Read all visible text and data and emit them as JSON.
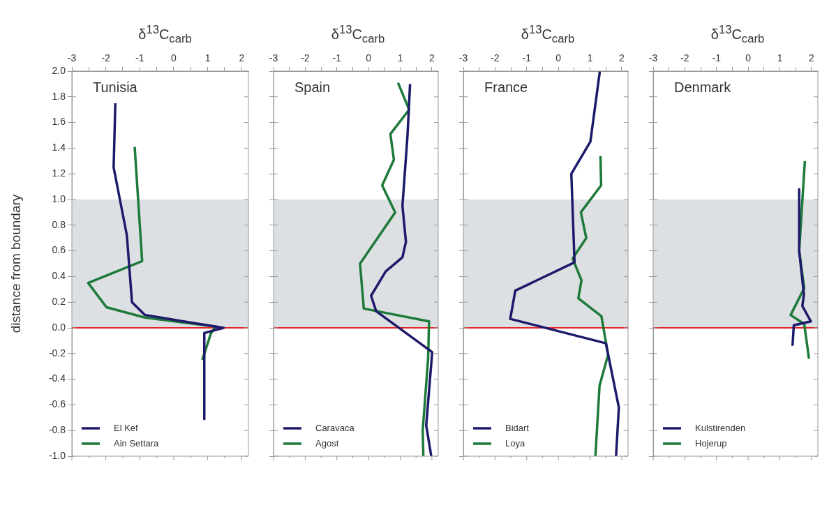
{
  "chart_data": [
    {
      "type": "line",
      "xlabel": "δ$^{13}$C$_{carb}$",
      "ylabel": "distance from boundary",
      "annotations": [
        "Tunisia"
      ],
      "xlim": [
        -3,
        2.2
      ],
      "ylim": [
        -1,
        2
      ],
      "xticks": [
        -3,
        {
          "value": -2.5,
          "label": null
        },
        -2,
        {
          "value": -1.5,
          "label": null
        },
        -1,
        {
          "value": -0.5,
          "label": null
        },
        0,
        {
          "value": 0.5,
          "label": null
        },
        1,
        {
          "value": 1.5,
          "label": null
        },
        2
      ],
      "yticks": [
        {
          "value": -1,
          "label": "-1.0"
        },
        {
          "value": -0.8,
          "label": "-0.8"
        },
        {
          "value": -0.6,
          "label": "-0.6"
        },
        {
          "value": -0.4,
          "label": "-0.4"
        },
        {
          "value": -0.2,
          "label": "-0.2"
        },
        {
          "value": 0,
          "label": "0.0"
        },
        {
          "value": 0.2,
          "label": "0.2"
        },
        {
          "value": 0.4,
          "label": "0.4"
        },
        {
          "value": 0.6,
          "label": "0.6"
        },
        {
          "value": 0.8,
          "label": "0.8"
        },
        {
          "value": 1,
          "label": "1.0"
        },
        {
          "value": 1.2,
          "label": "1.2"
        },
        {
          "value": 1.4,
          "label": "1.4"
        },
        {
          "value": 1.6,
          "label": "1.6"
        },
        {
          "value": 1.8,
          "label": "1.8"
        },
        {
          "value": 2,
          "label": "2.0"
        }
      ],
      "bands": [
        {
          "axis": "y",
          "from": 0,
          "to": 1,
          "color": "#dde0e3"
        }
      ],
      "ref_lines": [
        {
          "axis": "y",
          "value": 0,
          "color": "#e8262a"
        }
      ],
      "legend": "bottom left",
      "marker": "none",
      "line_style": "solid",
      "grid": false,
      "series": [
        {
          "name": "El Kef",
          "color": "#1d1a6b",
          "x": [
            -1.72,
            -1.77,
            -1.38,
            -1.23,
            -0.85,
            1.47,
            0.9,
            0.9
          ],
          "values": [
            1.75,
            1.25,
            0.72,
            0.2,
            0.1,
            0,
            -0.04,
            -0.71
          ]
        },
        {
          "name": "Ain Settara",
          "color": "#1d7a3a",
          "x": [
            -1.15,
            -0.93,
            -2.52,
            -1.98,
            -0.85,
            1.25,
            1.1,
            0.84
          ],
          "values": [
            1.41,
            0.52,
            0.35,
            0.16,
            0.08,
            0.01,
            -0.04,
            -0.25
          ]
        }
      ]
    },
    {
      "type": "line",
      "xlabel": "δ$^{13}$C$_{carb}$",
      "annotations": [
        "Spain"
      ],
      "xlim": [
        -3,
        2.2
      ],
      "ylim": [
        -1,
        2
      ],
      "tick_labels": "x",
      "xticks": [
        -3,
        {
          "value": -2.5,
          "label": null
        },
        -2,
        {
          "value": -1.5,
          "label": null
        },
        -1,
        {
          "value": -0.5,
          "label": null
        },
        0,
        {
          "value": 0.5,
          "label": null
        },
        1,
        {
          "value": 1.5,
          "label": null
        },
        2
      ],
      "yticks": [
        {
          "value": -1,
          "label": null
        },
        {
          "value": -0.8,
          "label": null
        },
        {
          "value": -0.6,
          "label": null
        },
        {
          "value": -0.4,
          "label": null
        },
        {
          "value": -0.2,
          "label": null
        },
        {
          "value": 0,
          "label": null
        },
        {
          "value": 0.2,
          "label": null
        },
        {
          "value": 0.4,
          "label": null
        },
        {
          "value": 0.6,
          "label": null
        },
        {
          "value": 0.8,
          "label": null
        },
        {
          "value": 1,
          "label": null
        },
        {
          "value": 1.2,
          "label": null
        },
        {
          "value": 1.4,
          "label": null
        },
        {
          "value": 1.6,
          "label": null
        },
        {
          "value": 1.8,
          "label": null
        },
        {
          "value": 2,
          "label": null
        }
      ],
      "bands": [
        {
          "axis": "y",
          "from": 0,
          "to": 1,
          "color": "#dde0e3"
        }
      ],
      "ref_lines": [
        {
          "axis": "y",
          "value": 0,
          "color": "#e8262a"
        }
      ],
      "legend": "bottom left",
      "marker": "none",
      "line_style": "solid",
      "grid": false,
      "series": [
        {
          "name": "Caravaca",
          "color": "#1d1a6b",
          "x": [
            1.31,
            1.23,
            1.07,
            1.18,
            1.07,
            0.54,
            0.08,
            0.24,
            2.01,
            1.82,
            1.98
          ],
          "values": [
            1.9,
            1.5,
            0.95,
            0.67,
            0.55,
            0.44,
            0.25,
            0.13,
            -0.19,
            -0.76,
            -1
          ]
        },
        {
          "name": "Agost",
          "color": "#1d7a3a",
          "x": [
            0.93,
            1.28,
            0.69,
            0.8,
            0.43,
            0.84,
            -0.27,
            -0.15,
            1.91,
            1.88,
            1.71,
            1.73
          ],
          "values": [
            1.91,
            1.7,
            1.51,
            1.31,
            1.11,
            0.9,
            0.5,
            0.15,
            0.05,
            -0.24,
            -0.8,
            -1
          ]
        }
      ]
    },
    {
      "type": "line",
      "xlabel": "δ$^{13}$C$_{carb}$",
      "annotations": [
        "France"
      ],
      "xlim": [
        -3,
        2.2
      ],
      "ylim": [
        -1,
        2
      ],
      "tick_labels": "x",
      "xticks": [
        -3,
        {
          "value": -2.5,
          "label": null
        },
        -2,
        {
          "value": -1.5,
          "label": null
        },
        -1,
        {
          "value": -0.5,
          "label": null
        },
        0,
        {
          "value": 0.5,
          "label": null
        },
        1,
        {
          "value": 1.5,
          "label": null
        },
        2
      ],
      "yticks": [
        {
          "value": -1,
          "label": null
        },
        {
          "value": -0.8,
          "label": null
        },
        {
          "value": -0.6,
          "label": null
        },
        {
          "value": -0.4,
          "label": null
        },
        {
          "value": -0.2,
          "label": null
        },
        {
          "value": 0,
          "label": null
        },
        {
          "value": 0.2,
          "label": null
        },
        {
          "value": 0.4,
          "label": null
        },
        {
          "value": 0.6,
          "label": null
        },
        {
          "value": 0.8,
          "label": null
        },
        {
          "value": 1,
          "label": null
        },
        {
          "value": 1.2,
          "label": null
        },
        {
          "value": 1.4,
          "label": null
        },
        {
          "value": 1.6,
          "label": null
        },
        {
          "value": 1.8,
          "label": null
        },
        {
          "value": 2,
          "label": null
        }
      ],
      "bands": [
        {
          "axis": "y",
          "from": 0,
          "to": 1,
          "color": "#dde0e3"
        }
      ],
      "ref_lines": [
        {
          "axis": "y",
          "value": 0,
          "color": "#e8262a"
        }
      ],
      "legend": "bottom left",
      "marker": "none",
      "line_style": "solid",
      "grid": false,
      "series": [
        {
          "name": "Bidart",
          "color": "#1d1a6b",
          "x": [
            1.31,
            1.01,
            0.41,
            0.51,
            -1.36,
            -1.52,
            1.5,
            1.91,
            1.82
          ],
          "values": [
            2,
            1.45,
            1.2,
            0.51,
            0.29,
            0.07,
            -0.12,
            -0.62,
            -1
          ]
        },
        {
          "name": "Loya",
          "color": "#1d7a3a",
          "x": [
            1.33,
            1.35,
            0.71,
            0.88,
            0.45,
            0.73,
            0.63,
            1.36,
            1.57,
            1.3,
            1.17
          ],
          "values": [
            1.34,
            1.11,
            0.9,
            0.7,
            0.54,
            0.37,
            0.23,
            0.09,
            -0.21,
            -0.45,
            -1
          ]
        }
      ]
    },
    {
      "type": "line",
      "xlabel": "δ$^{13}$C$_{carb}$",
      "annotations": [
        "Denmark"
      ],
      "xlim": [
        -3,
        2.2
      ],
      "ylim": [
        -1,
        2
      ],
      "tick_labels": "x",
      "xticks": [
        -3,
        {
          "value": -2.5,
          "label": null
        },
        -2,
        {
          "value": -1.5,
          "label": null
        },
        -1,
        {
          "value": -0.5,
          "label": null
        },
        0,
        {
          "value": 0.5,
          "label": null
        },
        1,
        {
          "value": 1.5,
          "label": null
        },
        2
      ],
      "yticks": [
        {
          "value": -1,
          "label": null
        },
        {
          "value": -0.8,
          "label": null
        },
        {
          "value": -0.6,
          "label": null
        },
        {
          "value": -0.4,
          "label": null
        },
        {
          "value": -0.2,
          "label": null
        },
        {
          "value": 0,
          "label": null
        },
        {
          "value": 0.2,
          "label": null
        },
        {
          "value": 0.4,
          "label": null
        },
        {
          "value": 0.6,
          "label": null
        },
        {
          "value": 0.8,
          "label": null
        },
        {
          "value": 1,
          "label": null
        },
        {
          "value": 1.2,
          "label": null
        },
        {
          "value": 1.4,
          "label": null
        },
        {
          "value": 1.6,
          "label": null
        },
        {
          "value": 1.8,
          "label": null
        },
        {
          "value": 2,
          "label": null
        }
      ],
      "bands": [
        {
          "axis": "y",
          "from": 0,
          "to": 1,
          "color": "#dde0e3"
        }
      ],
      "ref_lines": [
        {
          "axis": "y",
          "value": 0,
          "color": "#e8262a"
        }
      ],
      "legend": "bottom left",
      "marker": "none",
      "line_style": "solid",
      "grid": false,
      "series": [
        {
          "name": "Kulstirenden",
          "color": "#1d1a6b",
          "x": [
            1.61,
            1.61,
            1.76,
            1.71,
            1.98,
            1.44,
            1.4
          ],
          "values": [
            1.08,
            0.6,
            0.26,
            0.17,
            0.05,
            0.02,
            -0.14
          ]
        },
        {
          "name": "Hojerup",
          "color": "#1d7a3a",
          "x": [
            1.79,
            1.61,
            1.77,
            1.34,
            1.77,
            1.92
          ],
          "values": [
            1.3,
            0.6,
            0.31,
            0.1,
            0.03,
            -0.24
          ]
        }
      ]
    }
  ]
}
